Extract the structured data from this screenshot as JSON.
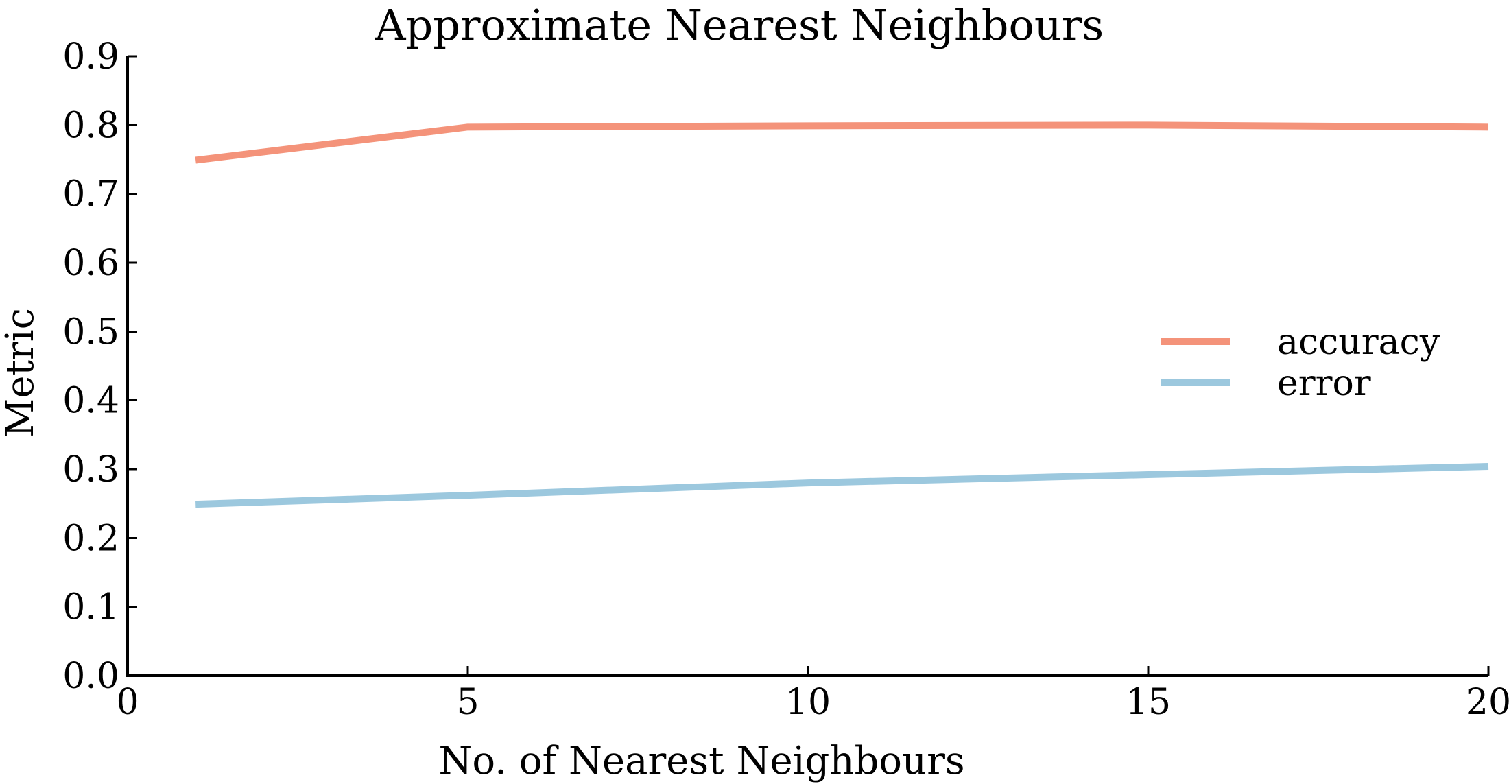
{
  "chart_data": {
    "type": "line",
    "title": "Approximate Nearest Neighbours",
    "xlabel": "No. of Nearest Neighbours",
    "ylabel": "Metric",
    "xlim": [
      0,
      20
    ],
    "ylim": [
      0.0,
      0.9
    ],
    "xticks": [
      0,
      5,
      10,
      15,
      20
    ],
    "xtick_labels": [
      "0",
      "5",
      "10",
      "15",
      "20"
    ],
    "yticks": [
      0.0,
      0.1,
      0.2,
      0.3,
      0.4,
      0.5,
      0.6,
      0.7,
      0.8,
      0.9
    ],
    "ytick_labels": [
      "0.0",
      "0.1",
      "0.2",
      "0.3",
      "0.4",
      "0.5",
      "0.6",
      "0.7",
      "0.8",
      "0.9"
    ],
    "grid": false,
    "legend_position": "right",
    "series": [
      {
        "name": "accuracy",
        "color": "#f4937a",
        "x": [
          1,
          5,
          10,
          15,
          20
        ],
        "y": [
          0.749,
          0.797,
          0.799,
          0.8,
          0.797
        ]
      },
      {
        "name": "error",
        "color": "#9cc8de",
        "x": [
          1,
          5,
          10,
          15,
          20
        ],
        "y": [
          0.249,
          0.262,
          0.28,
          0.292,
          0.304
        ]
      }
    ]
  }
}
